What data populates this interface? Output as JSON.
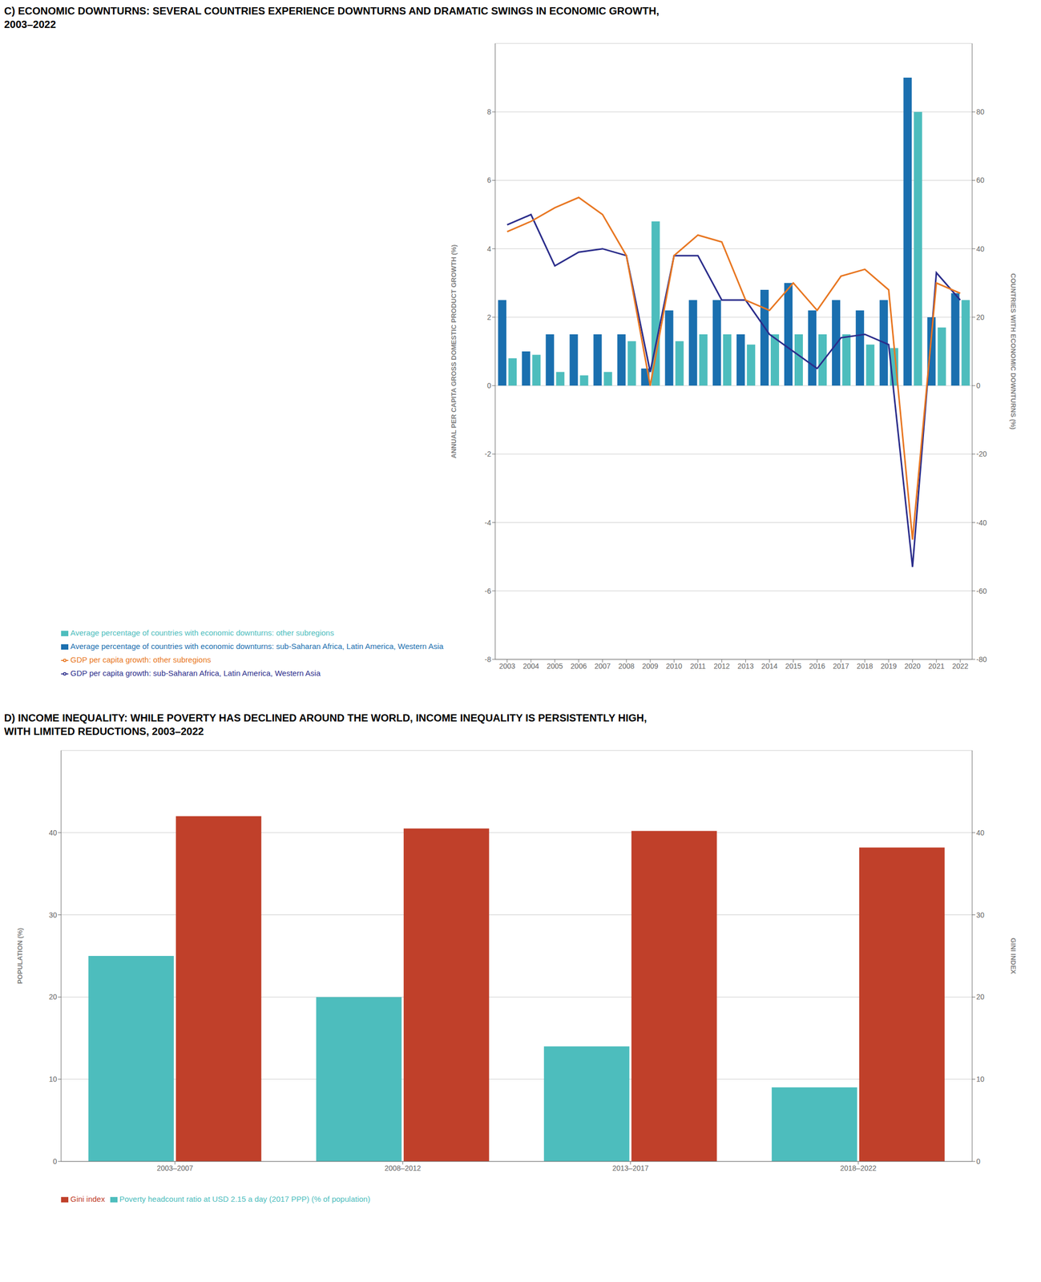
{
  "chart_data": [
    {
      "type": "bar",
      "title": "C) ECONOMIC DOWNTURNS: SEVERAL COUNTRIES EXPERIENCE DOWNTURNS AND DRAMATIC SWINGS IN ECONOMIC GROWTH,\n2003–2022",
      "categories": [
        "2003",
        "2004",
        "2005",
        "2006",
        "2007",
        "2008",
        "2009",
        "2010",
        "2011",
        "2012",
        "2013",
        "2014",
        "2015",
        "2016",
        "2017",
        "2018",
        "2019",
        "2020",
        "2021",
        "2022"
      ],
      "series": [
        {
          "name": "Average percentage of countries with economic downturns: sub-Saharan Africa, Latin America, Western Asia",
          "type": "bar",
          "color": "#1A6FAF",
          "axis": "y2",
          "values": [
            25,
            10,
            15,
            15,
            15,
            15,
            5,
            22,
            25,
            25,
            15,
            28,
            30,
            22,
            25,
            22,
            25,
            90,
            20,
            27
          ]
        },
        {
          "name": "Average percentage of countries with economic downturns: other subregions",
          "type": "bar",
          "color": "#4DBDBD",
          "axis": "y2",
          "values": [
            8,
            9,
            4,
            3,
            4,
            13,
            48,
            13,
            15,
            15,
            12,
            15,
            15,
            15,
            15,
            12,
            11,
            80,
            17,
            25
          ]
        },
        {
          "name": "GDP per capita growth: sub-Saharan Africa, Latin America, Western Asia",
          "type": "line",
          "color": "#2B2D8B",
          "values": [
            4.7,
            5.0,
            3.5,
            3.9,
            4.0,
            3.8,
            0.4,
            3.8,
            3.8,
            2.5,
            2.5,
            1.5,
            1.0,
            0.5,
            1.4,
            1.5,
            1.2,
            -5.3,
            3.3,
            2.5
          ]
        },
        {
          "name": "GDP per capita growth: other subregions",
          "type": "line",
          "color": "#E87722",
          "values": [
            4.5,
            4.8,
            5.2,
            5.5,
            5.0,
            3.8,
            0.0,
            3.8,
            4.4,
            4.2,
            2.5,
            2.2,
            3.0,
            2.2,
            3.2,
            3.4,
            2.8,
            -4.5,
            3.0,
            2.7
          ]
        }
      ],
      "ylabel": "ANNUAL PER CAPITA GROSS DOMESTIC PRODUCT GROWTH (%)",
      "y2label": "COUNTRIES WITH ECONOMIC DOWNTURNS (%)",
      "ylim": [
        -8,
        10
      ],
      "yticks": [
        -8,
        -6,
        -4,
        -2,
        0,
        2,
        4,
        6,
        8
      ],
      "y2lim": [
        -80,
        100
      ],
      "y2ticks": [
        -80,
        -60,
        -40,
        -20,
        0,
        20,
        40,
        60,
        80
      ],
      "grid": true,
      "legend": "bottom"
    },
    {
      "type": "bar",
      "title": "D) INCOME INEQUALITY: WHILE POVERTY HAS DECLINED AROUND THE WORLD, INCOME INEQUALITY IS PERSISTENTLY HIGH,\nWITH LIMITED REDUCTIONS, 2003–2022",
      "categories": [
        "2003–2007",
        "2008–2012",
        "2013–2017",
        "2018–2022"
      ],
      "series": [
        {
          "name": "Poverty headcount ratio at USD 2.15 a day (2017 PPP) (% of population)",
          "type": "bar",
          "color": "#4DBDBD",
          "values": [
            25.0,
            20.0,
            14.0,
            9.0
          ]
        },
        {
          "name": "Gini index",
          "type": "bar",
          "color": "#C0402A",
          "axis": "y2",
          "values": [
            42.0,
            40.5,
            40.2,
            38.2
          ]
        }
      ],
      "ylabel": "POPULATION (%)",
      "y2label": "GINI INDEX",
      "ylim": [
        0,
        50
      ],
      "yticks": [
        0,
        10,
        20,
        30,
        40
      ],
      "y2lim": [
        0,
        50
      ],
      "y2ticks": [
        0,
        10,
        20,
        30,
        40
      ],
      "grid": true,
      "legend": "bottom"
    }
  ]
}
